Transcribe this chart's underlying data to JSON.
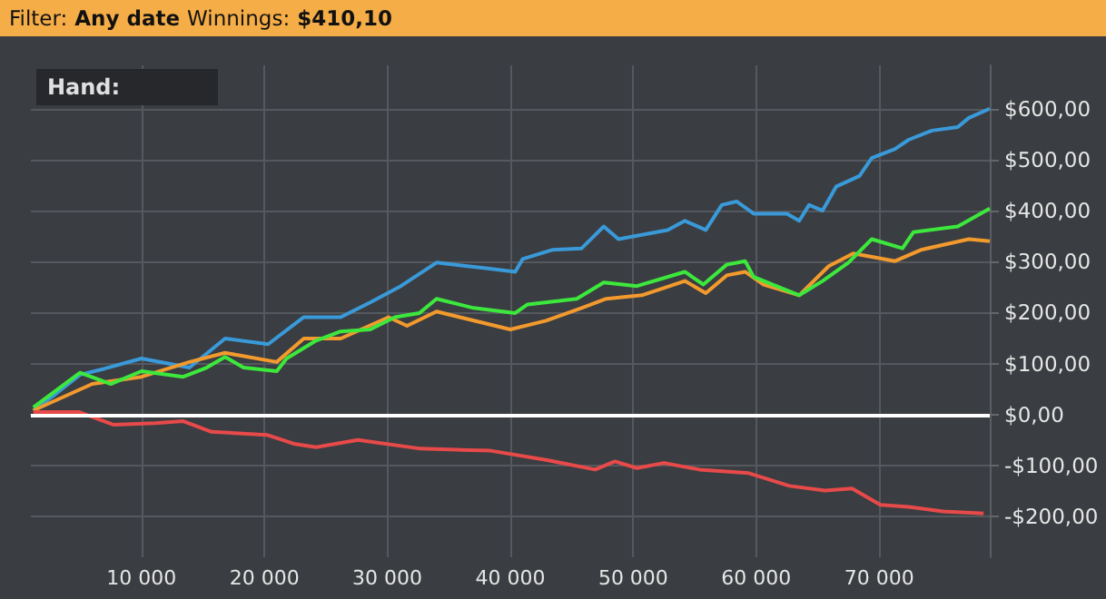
{
  "chart_data": {
    "type": "line",
    "annotations": [
      "Filter:",
      "Any date",
      "Winnings:",
      "$410,10",
      "Hand:"
    ],
    "xlim": [
      1000,
      79000
    ],
    "xticks": [
      {
        "value": 10000,
        "label": "10 000"
      },
      {
        "value": 20000,
        "label": "20 000"
      },
      {
        "value": 30000,
        "label": "30 000"
      },
      {
        "value": 40000,
        "label": "40 000"
      },
      {
        "value": 50000,
        "label": "50 000"
      },
      {
        "value": 60000,
        "label": "60 000"
      },
      {
        "value": 70000,
        "label": "70 000"
      }
    ],
    "ylim": [
      -280,
      685
    ],
    "yticks": [
      {
        "value": -200,
        "label": "-$200,00"
      },
      {
        "value": -100,
        "label": "-$100,00"
      },
      {
        "value": 0,
        "label": "$0,00"
      },
      {
        "value": 100,
        "label": "$100,00"
      },
      {
        "value": 200,
        "label": "$200,00"
      },
      {
        "value": 300,
        "label": "$300,00"
      },
      {
        "value": 400,
        "label": "$400,00"
      },
      {
        "value": 500,
        "label": "$500,00"
      },
      {
        "value": 600,
        "label": "$600,00"
      }
    ],
    "grid": true,
    "ref_lines": [
      {
        "axis": "y",
        "value": 0,
        "color": "#ffffff"
      }
    ],
    "series": [
      {
        "color": "#3a9ad9",
        "x": [
          1200,
          3000,
          5000,
          7000,
          10000,
          13900,
          16800,
          20300,
          23200,
          26200,
          28600,
          31100,
          34000,
          38000,
          40400,
          41000,
          43400,
          45800,
          47600,
          48800,
          52800,
          54200,
          55900,
          57200,
          58400,
          59800,
          62500,
          63500,
          64300,
          65400,
          66500,
          68400,
          69400,
          71300,
          72400,
          74300,
          76400,
          77300,
          79000
        ],
        "values": [
          8,
          40,
          78,
          90,
          110,
          92,
          149,
          138,
          191,
          191,
          220,
          252,
          298,
          287,
          280,
          305,
          323,
          326,
          369,
          344,
          362,
          380,
          362,
          411,
          418,
          394,
          394,
          380,
          411,
          400,
          447,
          468,
          503,
          521,
          539,
          557,
          564,
          582,
          600
        ]
      },
      {
        "color": "#f39a2e",
        "x": [
          1200,
          6000,
          10000,
          13900,
          16800,
          21000,
          23200,
          26200,
          30100,
          31600,
          34000,
          40000,
          42900,
          45800,
          47800,
          50700,
          54200,
          55900,
          57600,
          59100,
          60600,
          63500,
          65900,
          67900,
          71300,
          73400,
          77300,
          79000
        ],
        "values": [
          8,
          60,
          74,
          103,
          121,
          103,
          149,
          149,
          191,
          174,
          202,
          167,
          184,
          209,
          227,
          234,
          262,
          238,
          273,
          280,
          255,
          234,
          291,
          316,
          301,
          323,
          344,
          340
        ]
      },
      {
        "color": "#3de83d",
        "x": [
          1200,
          5000,
          7500,
          10000,
          13400,
          15300,
          16800,
          18300,
          21000,
          21800,
          24200,
          26200,
          28600,
          30600,
          32600,
          34000,
          37000,
          40400,
          41400,
          45400,
          47600,
          50300,
          54200,
          55700,
          57600,
          59100,
          59800,
          63500,
          65400,
          67500,
          69400,
          71900,
          72800,
          76400,
          79000
        ],
        "values": [
          14,
          82,
          60,
          85,
          74,
          92,
          113,
          92,
          85,
          110,
          145,
          163,
          167,
          191,
          199,
          227,
          209,
          199,
          216,
          227,
          259,
          252,
          280,
          255,
          294,
          301,
          270,
          234,
          262,
          298,
          344,
          326,
          358,
          369,
          404
        ]
      },
      {
        "color": "#e84a4a",
        "x": [
          1200,
          4900,
          7700,
          11100,
          13400,
          15700,
          20200,
          22500,
          24200,
          27600,
          32700,
          38400,
          42900,
          46900,
          48500,
          50300,
          52500,
          55400,
          59400,
          62700,
          65600,
          67800,
          70100,
          72400,
          75200,
          78500
        ],
        "values": [
          5,
          5,
          -20,
          -17,
          -13,
          -34,
          -40,
          -58,
          -64,
          -50,
          -67,
          -71,
          -89,
          -108,
          -92,
          -105,
          -95,
          -108,
          -115,
          -140,
          -149,
          -145,
          -177,
          -181,
          -190,
          -194
        ]
      }
    ]
  }
}
